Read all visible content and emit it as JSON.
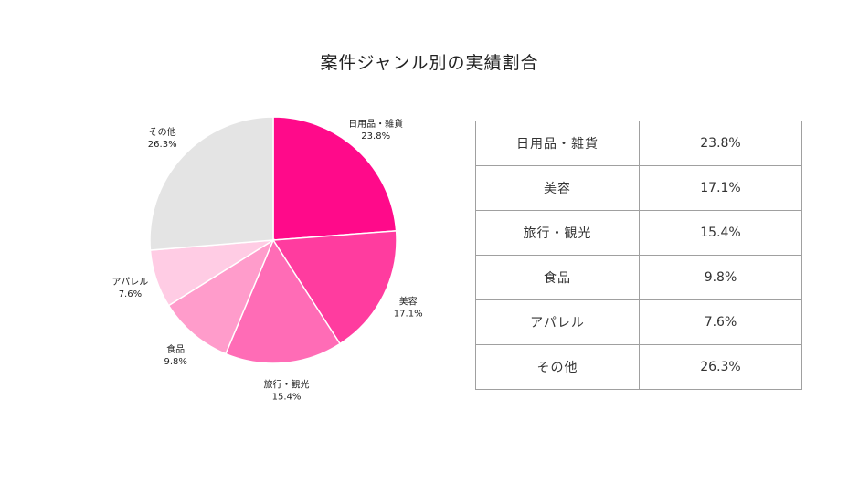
{
  "chart_data": {
    "type": "pie",
    "title": "案件ジャンル別の実績割合",
    "categories": [
      "日用品・雑貨",
      "美容",
      "旅行・観光",
      "食品",
      "アパレル",
      "その他"
    ],
    "values": [
      23.8,
      17.1,
      15.4,
      9.8,
      7.6,
      26.3
    ],
    "value_labels": [
      "23.8%",
      "17.1%",
      "15.4%",
      "9.8%",
      "7.6%",
      "26.3%"
    ],
    "colors": [
      "#ff0a8a",
      "#ff3c9f",
      "#ff6cb6",
      "#ff9ccb",
      "#ffccE4",
      "#e4e4e4"
    ],
    "start_angle": "12 o'clock",
    "direction": "clockwise",
    "legend": "none"
  },
  "table": {
    "rows": [
      {
        "category": "日用品・雑貨",
        "value": "23.8%"
      },
      {
        "category": "美容",
        "value": "17.1%"
      },
      {
        "category": "旅行・観光",
        "value": "15.4%"
      },
      {
        "category": "食品",
        "value": "9.8%"
      },
      {
        "category": "アパレル",
        "value": "7.6%"
      },
      {
        "category": "その他",
        "value": "26.3%"
      }
    ]
  }
}
